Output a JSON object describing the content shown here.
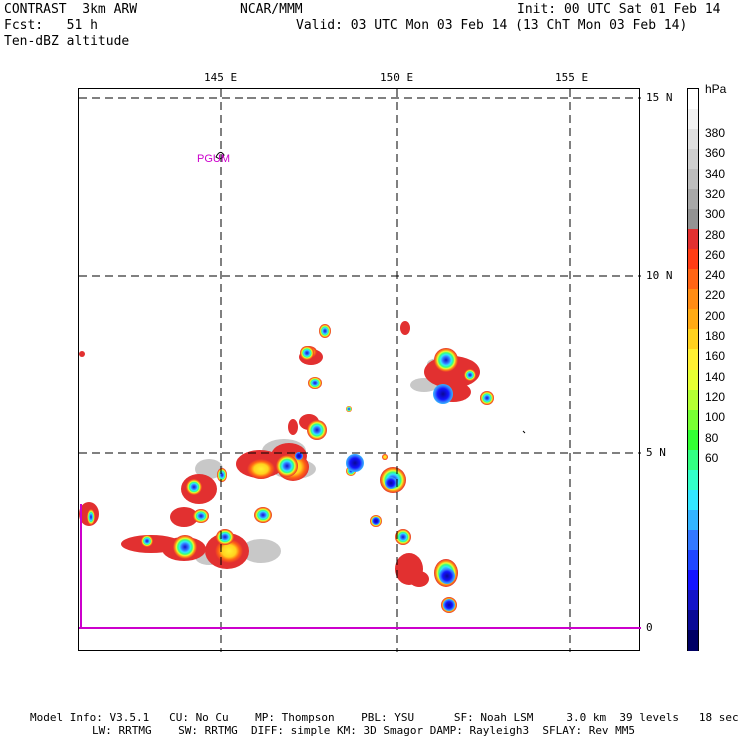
{
  "header": {
    "line1_left": "CONTRAST  3km ARW",
    "line1_mid": "NCAR/MMM",
    "line1_right": "Init: 00 UTC Sat 01 Feb 14",
    "line2_left": "Fcst:   51 h",
    "line2_right": "Valid: 03 UTC Mon 03 Feb 14 (13 ChT Mon 03 Feb 14)",
    "line3_left": "Ten-dBZ altitude"
  },
  "map": {
    "lon_labels": [
      "145 E",
      "150 E",
      "155 E"
    ],
    "lat_labels": [
      "15 N",
      "10 N",
      "5 N",
      "0"
    ],
    "station_label": "PGUM",
    "colors": {
      "station": "#cc00cc",
      "equator": "#cc00cc",
      "grid": "#000000"
    }
  },
  "colorbar": {
    "units": "hPa",
    "tick_labels": [
      "380",
      "360",
      "340",
      "320",
      "300",
      "280",
      "260",
      "240",
      "220",
      "200",
      "180",
      "160",
      "140",
      "120",
      "100",
      "80",
      "60"
    ],
    "colors": [
      "#ffffff",
      "#f2f2f2",
      "#e0e0e0",
      "#cfcfcf",
      "#bdbdbd",
      "#a8a8a8",
      "#939393",
      "#e23030",
      "#ff3c14",
      "#ff6414",
      "#ff8c14",
      "#ffaa14",
      "#ffd21e",
      "#fff032",
      "#e6ff32",
      "#b4ff32",
      "#78ff32",
      "#32ff32",
      "#32ff82",
      "#32ffc8",
      "#32e6ff",
      "#32b4ff",
      "#3278ff",
      "#1e46ff",
      "#1414ff",
      "#1414c8",
      "#0a0a96",
      "#000064"
    ]
  },
  "footer": {
    "line1": "Model Info: V3.5.1   CU: No Cu    MP: Thompson    PBL: YSU      SF: Noah LSM     3.0 km  39 levels   18 sec",
    "line2": "LW: RRTMG    SW: RRTMG  DIFF: simple KM: 3D Smagor DAMP: Rayleigh3  SFLAY: Rev MM5"
  }
}
